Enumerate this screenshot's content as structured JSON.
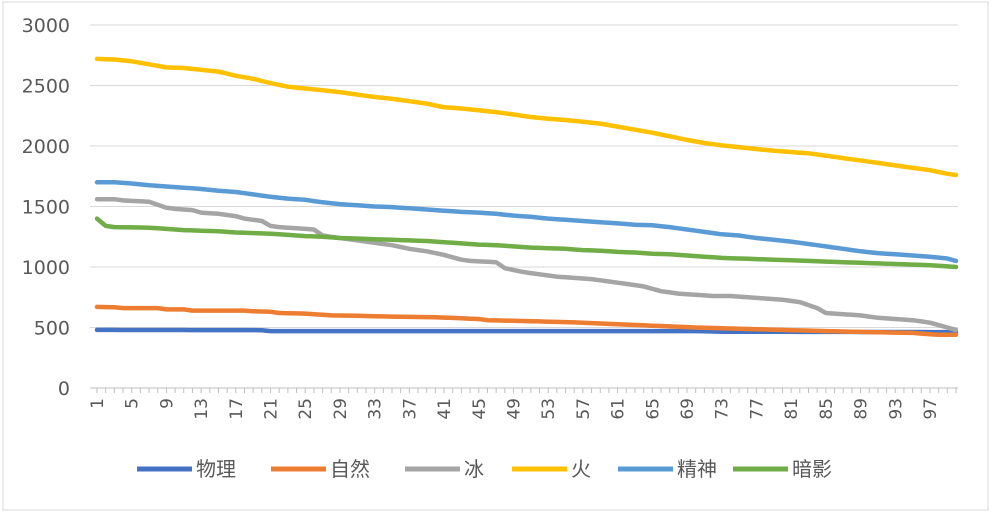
{
  "chart_data": {
    "type": "line",
    "title": "",
    "xlabel": "",
    "ylabel": "",
    "ylim": [
      0,
      3000
    ],
    "yticks": [
      0,
      500,
      1000,
      1500,
      2000,
      2500,
      3000
    ],
    "x": [
      1,
      2,
      3,
      4,
      5,
      6,
      7,
      8,
      9,
      10,
      11,
      12,
      13,
      14,
      15,
      16,
      17,
      18,
      19,
      20,
      21,
      22,
      23,
      24,
      25,
      26,
      27,
      28,
      29,
      30,
      31,
      32,
      33,
      34,
      35,
      36,
      37,
      38,
      39,
      40,
      41,
      42,
      43,
      44,
      45,
      46,
      47,
      48,
      49,
      50,
      51,
      52,
      53,
      54,
      55,
      56,
      57,
      58,
      59,
      60,
      61,
      62,
      63,
      64,
      65,
      66,
      67,
      68,
      69,
      70,
      71,
      72,
      73,
      74,
      75,
      76,
      77,
      78,
      79,
      80,
      81,
      82,
      83,
      84,
      85,
      86,
      87,
      88,
      89,
      90,
      91,
      92,
      93,
      94,
      95,
      96,
      97,
      98,
      99,
      100
    ],
    "xtick_labels": [
      "1",
      "5",
      "9",
      "13",
      "17",
      "21",
      "25",
      "29",
      "33",
      "37",
      "41",
      "45",
      "49",
      "53",
      "57",
      "61",
      "65",
      "69",
      "73",
      "77",
      "81",
      "85",
      "89",
      "93",
      "97"
    ],
    "xtick_values": [
      1,
      5,
      9,
      13,
      17,
      21,
      25,
      29,
      33,
      37,
      41,
      45,
      49,
      53,
      57,
      61,
      65,
      69,
      73,
      77,
      81,
      85,
      89,
      93,
      97
    ],
    "grid": true,
    "legend_position": "bottom",
    "series": [
      {
        "name": "物理",
        "color": "#4472C4",
        "anchors": [
          [
            1,
            480
          ],
          [
            20,
            478
          ],
          [
            21,
            470
          ],
          [
            70,
            470
          ],
          [
            73,
            465
          ],
          [
            100,
            462
          ]
        ]
      },
      {
        "name": "自然",
        "color": "#ED7D31",
        "anchors": [
          [
            1,
            670
          ],
          [
            3,
            668
          ],
          [
            4,
            660
          ],
          [
            8,
            660
          ],
          [
            9,
            650
          ],
          [
            11,
            650
          ],
          [
            12,
            640
          ],
          [
            18,
            640
          ],
          [
            19,
            635
          ],
          [
            21,
            630
          ],
          [
            22,
            620
          ],
          [
            25,
            615
          ],
          [
            26,
            610
          ],
          [
            28,
            600
          ],
          [
            30,
            598
          ],
          [
            35,
            590
          ],
          [
            40,
            585
          ],
          [
            45,
            570
          ],
          [
            46,
            560
          ],
          [
            55,
            545
          ],
          [
            60,
            530
          ],
          [
            65,
            515
          ],
          [
            70,
            500
          ],
          [
            75,
            490
          ],
          [
            80,
            480
          ],
          [
            85,
            470
          ],
          [
            90,
            462
          ],
          [
            95,
            455
          ],
          [
            98,
            440
          ],
          [
            100,
            440
          ]
        ]
      },
      {
        "name": "冰",
        "color": "#A5A5A5",
        "anchors": [
          [
            1,
            1560
          ],
          [
            3,
            1560
          ],
          [
            4,
            1550
          ],
          [
            7,
            1540
          ],
          [
            9,
            1490
          ],
          [
            10,
            1480
          ],
          [
            12,
            1470
          ],
          [
            13,
            1450
          ],
          [
            15,
            1440
          ],
          [
            17,
            1420
          ],
          [
            18,
            1400
          ],
          [
            20,
            1380
          ],
          [
            21,
            1340
          ],
          [
            22,
            1330
          ],
          [
            26,
            1310
          ],
          [
            27,
            1260
          ],
          [
            29,
            1240
          ],
          [
            31,
            1220
          ],
          [
            33,
            1200
          ],
          [
            35,
            1180
          ],
          [
            37,
            1150
          ],
          [
            39,
            1130
          ],
          [
            41,
            1100
          ],
          [
            43,
            1060
          ],
          [
            44,
            1050
          ],
          [
            47,
            1040
          ],
          [
            48,
            990
          ],
          [
            50,
            960
          ],
          [
            52,
            940
          ],
          [
            54,
            920
          ],
          [
            56,
            910
          ],
          [
            58,
            900
          ],
          [
            60,
            880
          ],
          [
            62,
            860
          ],
          [
            64,
            840
          ],
          [
            66,
            800
          ],
          [
            68,
            780
          ],
          [
            70,
            770
          ],
          [
            72,
            760
          ],
          [
            74,
            760
          ],
          [
            76,
            750
          ],
          [
            78,
            740
          ],
          [
            80,
            730
          ],
          [
            82,
            710
          ],
          [
            84,
            660
          ],
          [
            85,
            620
          ],
          [
            87,
            610
          ],
          [
            89,
            600
          ],
          [
            91,
            580
          ],
          [
            93,
            570
          ],
          [
            95,
            560
          ],
          [
            97,
            540
          ],
          [
            99,
            500
          ],
          [
            100,
            480
          ]
        ]
      },
      {
        "name": "火",
        "color": "#FFC000",
        "anchors": [
          [
            1,
            2720
          ],
          [
            3,
            2715
          ],
          [
            5,
            2700
          ],
          [
            7,
            2675
          ],
          [
            9,
            2650
          ],
          [
            11,
            2645
          ],
          [
            13,
            2630
          ],
          [
            15,
            2615
          ],
          [
            17,
            2580
          ],
          [
            19,
            2555
          ],
          [
            21,
            2520
          ],
          [
            23,
            2490
          ],
          [
            25,
            2475
          ],
          [
            27,
            2460
          ],
          [
            29,
            2445
          ],
          [
            31,
            2425
          ],
          [
            33,
            2405
          ],
          [
            35,
            2390
          ],
          [
            37,
            2370
          ],
          [
            39,
            2350
          ],
          [
            41,
            2320
          ],
          [
            43,
            2310
          ],
          [
            45,
            2295
          ],
          [
            47,
            2280
          ],
          [
            49,
            2260
          ],
          [
            51,
            2240
          ],
          [
            53,
            2225
          ],
          [
            55,
            2215
          ],
          [
            57,
            2200
          ],
          [
            59,
            2185
          ],
          [
            61,
            2160
          ],
          [
            63,
            2135
          ],
          [
            65,
            2110
          ],
          [
            67,
            2080
          ],
          [
            69,
            2050
          ],
          [
            71,
            2025
          ],
          [
            73,
            2005
          ],
          [
            75,
            1990
          ],
          [
            77,
            1975
          ],
          [
            79,
            1960
          ],
          [
            81,
            1950
          ],
          [
            83,
            1940
          ],
          [
            85,
            1920
          ],
          [
            87,
            1900
          ],
          [
            89,
            1880
          ],
          [
            91,
            1860
          ],
          [
            93,
            1840
          ],
          [
            95,
            1820
          ],
          [
            97,
            1800
          ],
          [
            99,
            1770
          ],
          [
            100,
            1760
          ]
        ]
      },
      {
        "name": "精神",
        "color": "#5B9BD5",
        "anchors": [
          [
            1,
            1700
          ],
          [
            3,
            1700
          ],
          [
            5,
            1690
          ],
          [
            7,
            1675
          ],
          [
            9,
            1665
          ],
          [
            11,
            1655
          ],
          [
            13,
            1645
          ],
          [
            15,
            1630
          ],
          [
            17,
            1620
          ],
          [
            19,
            1600
          ],
          [
            21,
            1580
          ],
          [
            23,
            1565
          ],
          [
            25,
            1555
          ],
          [
            27,
            1535
          ],
          [
            29,
            1520
          ],
          [
            31,
            1510
          ],
          [
            33,
            1500
          ],
          [
            35,
            1495
          ],
          [
            37,
            1485
          ],
          [
            39,
            1475
          ],
          [
            41,
            1465
          ],
          [
            43,
            1455
          ],
          [
            45,
            1450
          ],
          [
            47,
            1440
          ],
          [
            49,
            1425
          ],
          [
            51,
            1415
          ],
          [
            53,
            1400
          ],
          [
            55,
            1390
          ],
          [
            57,
            1380
          ],
          [
            59,
            1370
          ],
          [
            61,
            1360
          ],
          [
            63,
            1350
          ],
          [
            65,
            1345
          ],
          [
            67,
            1330
          ],
          [
            69,
            1310
          ],
          [
            71,
            1290
          ],
          [
            73,
            1270
          ],
          [
            75,
            1260
          ],
          [
            77,
            1240
          ],
          [
            79,
            1225
          ],
          [
            81,
            1210
          ],
          [
            83,
            1190
          ],
          [
            85,
            1170
          ],
          [
            87,
            1150
          ],
          [
            89,
            1130
          ],
          [
            91,
            1115
          ],
          [
            93,
            1105
          ],
          [
            95,
            1095
          ],
          [
            97,
            1085
          ],
          [
            99,
            1070
          ],
          [
            100,
            1050
          ]
        ]
      },
      {
        "name": "暗影",
        "color": "#70AD47",
        "anchors": [
          [
            1,
            1400
          ],
          [
            2,
            1340
          ],
          [
            3,
            1330
          ],
          [
            7,
            1325
          ],
          [
            9,
            1315
          ],
          [
            11,
            1305
          ],
          [
            13,
            1300
          ],
          [
            15,
            1295
          ],
          [
            17,
            1285
          ],
          [
            19,
            1280
          ],
          [
            21,
            1275
          ],
          [
            23,
            1265
          ],
          [
            25,
            1255
          ],
          [
            27,
            1250
          ],
          [
            29,
            1240
          ],
          [
            31,
            1235
          ],
          [
            33,
            1230
          ],
          [
            35,
            1225
          ],
          [
            37,
            1220
          ],
          [
            39,
            1215
          ],
          [
            41,
            1205
          ],
          [
            43,
            1195
          ],
          [
            45,
            1185
          ],
          [
            47,
            1180
          ],
          [
            49,
            1170
          ],
          [
            51,
            1160
          ],
          [
            53,
            1155
          ],
          [
            55,
            1150
          ],
          [
            57,
            1140
          ],
          [
            59,
            1135
          ],
          [
            61,
            1125
          ],
          [
            63,
            1120
          ],
          [
            65,
            1110
          ],
          [
            67,
            1105
          ],
          [
            69,
            1095
          ],
          [
            71,
            1085
          ],
          [
            73,
            1075
          ],
          [
            75,
            1070
          ],
          [
            77,
            1065
          ],
          [
            79,
            1060
          ],
          [
            81,
            1055
          ],
          [
            83,
            1050
          ],
          [
            85,
            1045
          ],
          [
            87,
            1040
          ],
          [
            89,
            1035
          ],
          [
            91,
            1030
          ],
          [
            93,
            1025
          ],
          [
            95,
            1020
          ],
          [
            97,
            1015
          ],
          [
            99,
            1005
          ],
          [
            100,
            1000
          ]
        ]
      }
    ]
  }
}
